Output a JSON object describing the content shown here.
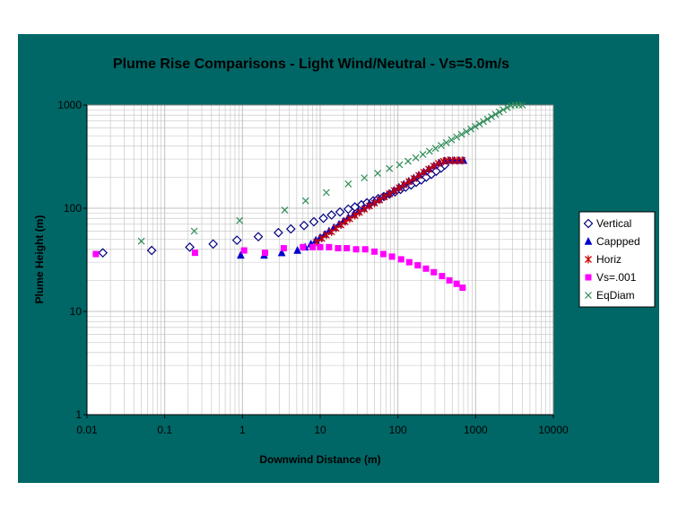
{
  "colors": {
    "panel_background": "#006666",
    "plot_background": "#ffffff",
    "grid": "#c0c0c0",
    "vertical": "#000080",
    "capped": "#0000cc",
    "horiz": "#cc0000",
    "vs001": "#ff00ff",
    "eqdiam": "#2e8b57"
  },
  "chart_data": {
    "type": "scatter",
    "title": "Plume Rise Comparisons - Light Wind/Neutral - Vs=5.0m/s",
    "xlabel": "Downwind Distance (m)",
    "ylabel": "Plume Height (m)",
    "xscale": "log",
    "yscale": "log",
    "xlim": [
      0.01,
      10000
    ],
    "ylim": [
      1,
      1000
    ],
    "grid": true,
    "legend_position": "right",
    "x_tick_labels": [
      "0.01",
      "0.1",
      "1",
      "10",
      "100",
      "1000",
      "10000"
    ],
    "y_tick_labels": [
      "1",
      "10",
      "100",
      "1000"
    ],
    "series": [
      {
        "name": "Vertical",
        "marker": "diamond-open",
        "points": [
          [
            0.016,
            37
          ],
          [
            0.068,
            39
          ],
          [
            0.21,
            42
          ],
          [
            0.42,
            45
          ],
          [
            0.85,
            49
          ],
          [
            1.6,
            53
          ],
          [
            2.9,
            58
          ],
          [
            4.2,
            63
          ],
          [
            6.2,
            68
          ],
          [
            8.3,
            74
          ],
          [
            11,
            80
          ],
          [
            14,
            86
          ],
          [
            18,
            92
          ],
          [
            23,
            98
          ],
          [
            28,
            103
          ],
          [
            34,
            108
          ],
          [
            40,
            113
          ],
          [
            48,
            118
          ],
          [
            56,
            124
          ],
          [
            66,
            130
          ],
          [
            78,
            137
          ],
          [
            92,
            144
          ],
          [
            108,
            152
          ],
          [
            126,
            160
          ],
          [
            148,
            168
          ],
          [
            172,
            178
          ],
          [
            200,
            188
          ],
          [
            232,
            200
          ],
          [
            270,
            213
          ],
          [
            312,
            228
          ],
          [
            360,
            245
          ],
          [
            400,
            262
          ]
        ]
      },
      {
        "name": "Cappped",
        "marker": "triangle",
        "points": [
          [
            0.95,
            35
          ],
          [
            1.9,
            35
          ],
          [
            3.2,
            37
          ],
          [
            5.1,
            39
          ],
          [
            6.4,
            42
          ],
          [
            7.6,
            45
          ],
          [
            8.8,
            49
          ],
          [
            10,
            52
          ],
          [
            11.5,
            56
          ],
          [
            13,
            60
          ],
          [
            15,
            65
          ],
          [
            17.5,
            70
          ],
          [
            20,
            75
          ],
          [
            23,
            81
          ],
          [
            27,
            87
          ],
          [
            31,
            93
          ],
          [
            36,
            100
          ],
          [
            42,
            107
          ],
          [
            49,
            114
          ],
          [
            57,
            122
          ],
          [
            66,
            130
          ],
          [
            77,
            139
          ],
          [
            89,
            149
          ],
          [
            103,
            160
          ],
          [
            119,
            171
          ],
          [
            138,
            183
          ],
          [
            160,
            196
          ],
          [
            186,
            210
          ],
          [
            215,
            225
          ],
          [
            250,
            241
          ],
          [
            290,
            258
          ],
          [
            340,
            275
          ],
          [
            400,
            288
          ],
          [
            460,
            290
          ],
          [
            530,
            290
          ],
          [
            610,
            290
          ],
          [
            700,
            290
          ]
        ]
      },
      {
        "name": "Horiz",
        "marker": "asterisk",
        "points": [
          [
            9,
            47
          ],
          [
            10.5,
            51
          ],
          [
            12,
            55
          ],
          [
            14,
            59
          ],
          [
            16,
            64
          ],
          [
            18.5,
            69
          ],
          [
            21,
            74
          ],
          [
            24,
            79
          ],
          [
            28,
            85
          ],
          [
            32,
            91
          ],
          [
            37,
            98
          ],
          [
            43,
            105
          ],
          [
            50,
            112
          ],
          [
            58,
            120
          ],
          [
            67,
            129
          ],
          [
            78,
            138
          ],
          [
            90,
            148
          ],
          [
            104,
            158
          ],
          [
            120,
            169
          ],
          [
            139,
            181
          ],
          [
            161,
            194
          ],
          [
            186,
            208
          ],
          [
            215,
            223
          ],
          [
            249,
            239
          ],
          [
            288,
            256
          ],
          [
            333,
            272
          ],
          [
            385,
            285
          ],
          [
            440,
            290
          ],
          [
            505,
            290
          ],
          [
            580,
            290
          ],
          [
            670,
            290
          ]
        ]
      },
      {
        "name": "Vs=.001",
        "marker": "square",
        "points": [
          [
            0.013,
            36
          ],
          [
            0.245,
            37
          ],
          [
            1.05,
            39
          ],
          [
            1.95,
            37
          ],
          [
            3.4,
            41
          ],
          [
            6,
            42
          ],
          [
            8,
            42
          ],
          [
            10,
            42
          ],
          [
            13,
            42
          ],
          [
            17,
            41
          ],
          [
            22,
            41
          ],
          [
            29,
            40
          ],
          [
            38,
            40
          ],
          [
            50,
            38
          ],
          [
            65,
            36
          ],
          [
            84,
            34
          ],
          [
            110,
            32
          ],
          [
            140,
            30
          ],
          [
            180,
            28
          ],
          [
            230,
            26
          ],
          [
            290,
            24
          ],
          [
            370,
            22
          ],
          [
            460,
            20
          ],
          [
            570,
            18.5
          ],
          [
            680,
            17
          ]
        ]
      },
      {
        "name": "EqDiam",
        "marker": "x",
        "points": [
          [
            0.05,
            48
          ],
          [
            0.24,
            60
          ],
          [
            0.92,
            76
          ],
          [
            3.5,
            96
          ],
          [
            6.5,
            118
          ],
          [
            12,
            142
          ],
          [
            23,
            172
          ],
          [
            37,
            197
          ],
          [
            55,
            218
          ],
          [
            78,
            242
          ],
          [
            105,
            264
          ],
          [
            135,
            285
          ],
          [
            170,
            308
          ],
          [
            210,
            332
          ],
          [
            255,
            356
          ],
          [
            305,
            380
          ],
          [
            360,
            406
          ],
          [
            420,
            432
          ],
          [
            490,
            460
          ],
          [
            570,
            490
          ],
          [
            660,
            520
          ],
          [
            760,
            552
          ],
          [
            870,
            586
          ],
          [
            990,
            620
          ],
          [
            1120,
            656
          ],
          [
            1260,
            692
          ],
          [
            1420,
            730
          ],
          [
            1600,
            770
          ],
          [
            1800,
            812
          ],
          [
            2020,
            855
          ],
          [
            2270,
            900
          ],
          [
            2550,
            945
          ],
          [
            2860,
            990
          ],
          [
            3200,
            1000
          ],
          [
            3600,
            1000
          ],
          [
            4000,
            1000
          ]
        ]
      }
    ]
  }
}
